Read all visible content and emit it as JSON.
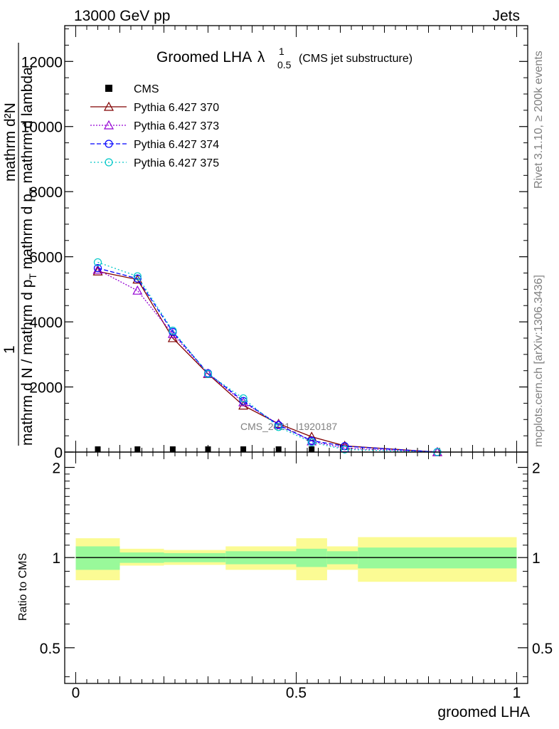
{
  "header": {
    "left": "13000 GeV pp",
    "right": "Jets"
  },
  "side": {
    "rivet": "Rivet 3.1.10, ≥ 200k events",
    "mcplots": "mcplots.cern.ch [arXiv:1306.3436]"
  },
  "watermark": "CMS_2021_I1920187",
  "chart_data": [
    {
      "type": "line",
      "title": {
        "main": "Groomed LHA",
        "lambda": "λ",
        "sup": "1",
        "sub": "0.5",
        "tail": "(CMS jet substructure)"
      },
      "ylabel": {
        "numerator": "mathrm d²N",
        "one": "1",
        "denominator": "mathrm d N / mathrm d p",
        "denom_sub": "T",
        "denom_tail": " mathrm d p",
        "denom_sub2": "T",
        "denom_tail2": " mathrm d lambda"
      },
      "xlim": [
        -0.025,
        1.025
      ],
      "ylim": [
        0,
        13100
      ],
      "y_ticks": [
        0,
        2000,
        4000,
        6000,
        8000,
        10000,
        12000
      ],
      "y_tick_labels": [
        "0",
        "2000",
        "4000",
        "6000",
        "8000",
        "10000",
        "12000"
      ],
      "legend": {
        "position": "top-left",
        "entries": [
          "CMS",
          "Pythia 6.427 370",
          "Pythia 6.427 373",
          "Pythia 6.427 374",
          "Pythia 6.427 375"
        ]
      },
      "data_points": {
        "name": "CMS",
        "x": [
          0.05,
          0.14,
          0.22,
          0.3,
          0.38,
          0.46,
          0.535
        ],
        "y": [
          0,
          0,
          0,
          0,
          0,
          0,
          0
        ]
      },
      "series": [
        {
          "name": "Pythia 6.427 370",
          "color": "#800000",
          "marker": "triangle",
          "dash": "",
          "x": [
            0.05,
            0.14,
            0.22,
            0.3,
            0.38,
            0.46,
            0.535,
            0.61,
            0.82
          ],
          "y": [
            5550,
            5300,
            3500,
            2400,
            1430,
            870,
            470,
            190,
            0
          ]
        },
        {
          "name": "Pythia 6.427 373",
          "color": "#9400d3",
          "marker": "triangle",
          "dash": "2,2",
          "x": [
            0.05,
            0.14,
            0.22,
            0.3,
            0.38,
            0.46,
            0.535,
            0.61,
            0.82
          ],
          "y": [
            5600,
            4960,
            3630,
            2410,
            1530,
            850,
            330,
            120,
            0
          ]
        },
        {
          "name": "Pythia 6.427 374",
          "color": "#0000ff",
          "marker": "circle",
          "dash": "6,3",
          "x": [
            0.05,
            0.14,
            0.22,
            0.3,
            0.38,
            0.46,
            0.535,
            0.61,
            0.82
          ],
          "y": [
            5650,
            5330,
            3690,
            2420,
            1570,
            830,
            350,
            180,
            0
          ]
        },
        {
          "name": "Pythia 6.427 375",
          "color": "#00c8c8",
          "marker": "circle",
          "dash": "2,3",
          "x": [
            0.05,
            0.14,
            0.22,
            0.3,
            0.38,
            0.46,
            0.535,
            0.61,
            0.82
          ],
          "y": [
            5830,
            5400,
            3730,
            2400,
            1650,
            770,
            300,
            80,
            0
          ]
        }
      ]
    },
    {
      "type": "area",
      "ylabel": "Ratio to CMS",
      "xlabel": "groomed LHA",
      "xlim": [
        -0.025,
        1.025
      ],
      "ylim": [
        0.38,
        2.25
      ],
      "y_ticks": [
        0.5,
        1,
        2
      ],
      "y_tick_labels": [
        "0.5",
        "1",
        "2"
      ],
      "x_ticks": [
        0,
        0.5,
        1
      ],
      "x_tick_labels": [
        "0",
        "0.5",
        "1"
      ],
      "bands": [
        {
          "x0": 0.0,
          "x1": 0.1,
          "inner": [
            0.91,
            1.09
          ],
          "outer": [
            0.84,
            1.16
          ]
        },
        {
          "x0": 0.1,
          "x1": 0.2,
          "inner": [
            0.96,
            1.04
          ],
          "outer": [
            0.94,
            1.07
          ]
        },
        {
          "x0": 0.2,
          "x1": 0.34,
          "inner": [
            0.965,
            1.035
          ],
          "outer": [
            0.945,
            1.06
          ]
        },
        {
          "x0": 0.34,
          "x1": 0.5,
          "inner": [
            0.95,
            1.05
          ],
          "outer": [
            0.91,
            1.09
          ]
        },
        {
          "x0": 0.5,
          "x1": 0.57,
          "inner": [
            0.93,
            1.07
          ],
          "outer": [
            0.84,
            1.16
          ]
        },
        {
          "x0": 0.57,
          "x1": 0.64,
          "inner": [
            0.95,
            1.05
          ],
          "outer": [
            0.91,
            1.09
          ]
        },
        {
          "x0": 0.64,
          "x1": 1.0,
          "inner": [
            0.92,
            1.08
          ],
          "outer": [
            0.83,
            1.17
          ]
        }
      ],
      "colors": {
        "inner": "#99f99a",
        "outer": "#fbfb94",
        "reference": "#000000"
      }
    }
  ]
}
